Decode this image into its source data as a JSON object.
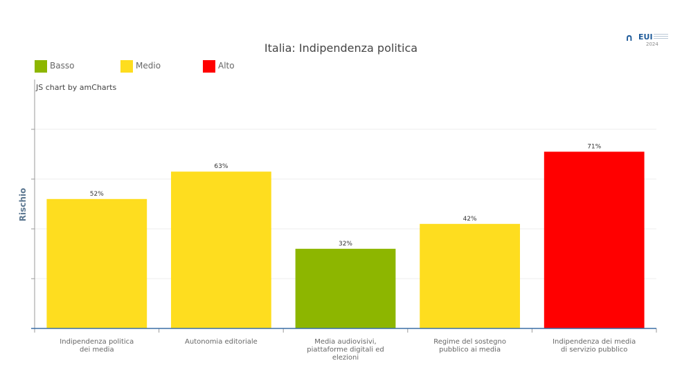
{
  "logo": {
    "text": "EUI",
    "year": "2024"
  },
  "chart_data": {
    "type": "bar",
    "title": "Italia: Indipendenza politica",
    "credit": "JS chart by amCharts",
    "ylabel": "Rischio",
    "xlabel": "",
    "ylim": [
      0,
      100
    ],
    "grid": true,
    "legend_position": "top-left",
    "legend": [
      {
        "label": "Basso",
        "color": "#8db600"
      },
      {
        "label": "Medio",
        "color": "#fedd1f"
      },
      {
        "label": "Alto",
        "color": "#ff0000"
      }
    ],
    "categories": [
      [
        "Indipendenza politica",
        "dei media"
      ],
      [
        "Autonomia editoriale"
      ],
      [
        "Media audiovisivi,",
        "piattaforme digitali ed",
        "elezioni"
      ],
      [
        "Regime del sostegno",
        "pubblico ai media"
      ],
      [
        "Indipendenza dei media",
        "di servizio pubblico"
      ]
    ],
    "values": [
      52,
      63,
      32,
      42,
      71
    ],
    "value_labels": [
      "52%",
      "63%",
      "32%",
      "42%",
      "71%"
    ],
    "colors": [
      "#fedd1f",
      "#fedd1f",
      "#8db600",
      "#fedd1f",
      "#ff0000"
    ]
  }
}
